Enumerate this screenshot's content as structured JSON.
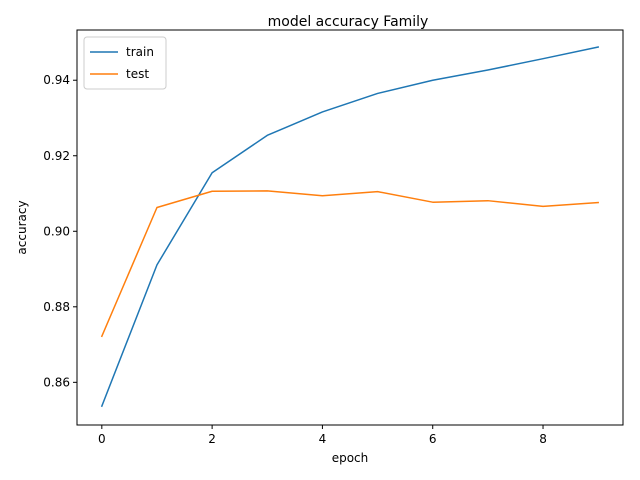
{
  "chart_data": {
    "type": "line",
    "title": "model accuracy Family",
    "xlabel": "epoch",
    "ylabel": "accuracy",
    "x": [
      0,
      1,
      2,
      3,
      4,
      5,
      6,
      7,
      8,
      9
    ],
    "xlim": [
      -0.45,
      9.45
    ],
    "ylim": [
      0.8487,
      0.9533
    ],
    "xticks": [
      0,
      2,
      4,
      6,
      8
    ],
    "yticks": [
      0.86,
      0.88,
      0.9,
      0.92,
      0.94
    ],
    "xtick_labels": [
      "0",
      "2",
      "4",
      "6",
      "8"
    ],
    "ytick_labels": [
      "0.86",
      "0.88",
      "0.90",
      "0.92",
      "0.94"
    ],
    "grid": false,
    "legend_position": "top-left",
    "series": [
      {
        "name": "train",
        "color": "#1f77b4",
        "values": [
          0.8537,
          0.8911,
          0.9155,
          0.9254,
          0.9316,
          0.9365,
          0.94,
          0.9427,
          0.9457,
          0.9488
        ]
      },
      {
        "name": "test",
        "color": "#ff7f0e",
        "values": [
          0.8722,
          0.9063,
          0.9106,
          0.9107,
          0.9094,
          0.9105,
          0.9077,
          0.9081,
          0.9066,
          0.9076
        ]
      }
    ]
  }
}
